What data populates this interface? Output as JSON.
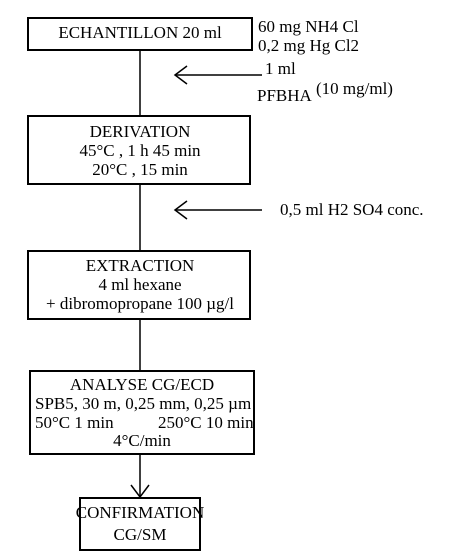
{
  "nodes": [
    {
      "lines": [
        "ECHANTILLON 20 ml"
      ]
    },
    {
      "lines": [
        "DERIVATION",
        "45°C , 1 h 45 min",
        "20°C , 15 min"
      ]
    },
    {
      "lines": [
        "EXTRACTION",
        "4 ml hexane",
        "+ dibromopropane 100 µg/l"
      ]
    },
    {
      "lines": [
        "ANALYSE CG/ECD",
        "SPB5, 30 m, 0,25 mm, 0,25 µm",
        "50°C 1 min",
        "250°C 10 min",
        "4°C/min"
      ]
    },
    {
      "lines": [
        "CONFIRMATION",
        "CG/SM"
      ]
    }
  ],
  "annotations": [
    {
      "lines": [
        "60 mg NH4 Cl",
        "0,2 mg Hg Cl2"
      ]
    },
    {
      "lines": [
        "1 ml",
        "PFBHA",
        "(10 mg/ml)"
      ]
    },
    {
      "lines": [
        "0,5 ml H2 SO4 conc."
      ]
    }
  ]
}
